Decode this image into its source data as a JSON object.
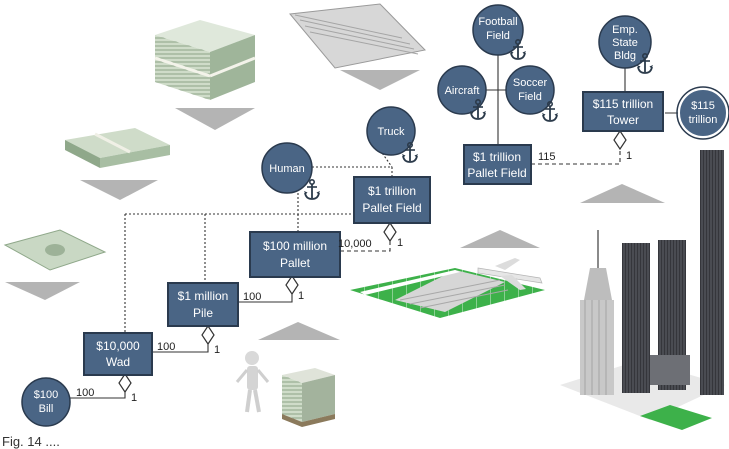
{
  "colors": {
    "box_fill": "#4a6585",
    "box_stroke": "#2a3a4e",
    "circle_fill": "#4a6585",
    "arrow_gray": "#b4b4b4",
    "field_green": "#3db14a",
    "cash_green": "#7aa582"
  },
  "boxes": {
    "wad": [
      "$10,000",
      "Wad"
    ],
    "pile": [
      "$1 million",
      "Pile"
    ],
    "pallet": [
      "$100 million",
      "Pallet"
    ],
    "field_mid": [
      "$1 trillion",
      "Pallet Field"
    ],
    "field_top": [
      "$1 trillion",
      "Pallet Field"
    ],
    "tower": [
      "$115 trillion",
      "Tower"
    ]
  },
  "circles": {
    "bill": [
      "$100",
      "Bill"
    ],
    "human": [
      "Human"
    ],
    "truck": [
      "Truck"
    ],
    "football": [
      "Football",
      "Field"
    ],
    "aircraft": [
      "Aircraft"
    ],
    "soccer": [
      "Soccer",
      "Field"
    ],
    "emp": [
      "Emp.",
      "State",
      "Bldg"
    ],
    "trillion115": [
      "$115",
      "trillion"
    ]
  },
  "multiplicities": {
    "bill_wad": "100",
    "wad_pile": "100",
    "pile_pallet": "100",
    "pallet_field": "10,000",
    "field_tower": "115",
    "one": "1"
  },
  "icons": {
    "anchor": "anchor-icon",
    "bill_stack": "money-stack-illustration",
    "pallet_field_image": "pallet-field-illustration",
    "skyline_image": "skyline-illustration"
  },
  "caption": "Fig. 14 ...."
}
